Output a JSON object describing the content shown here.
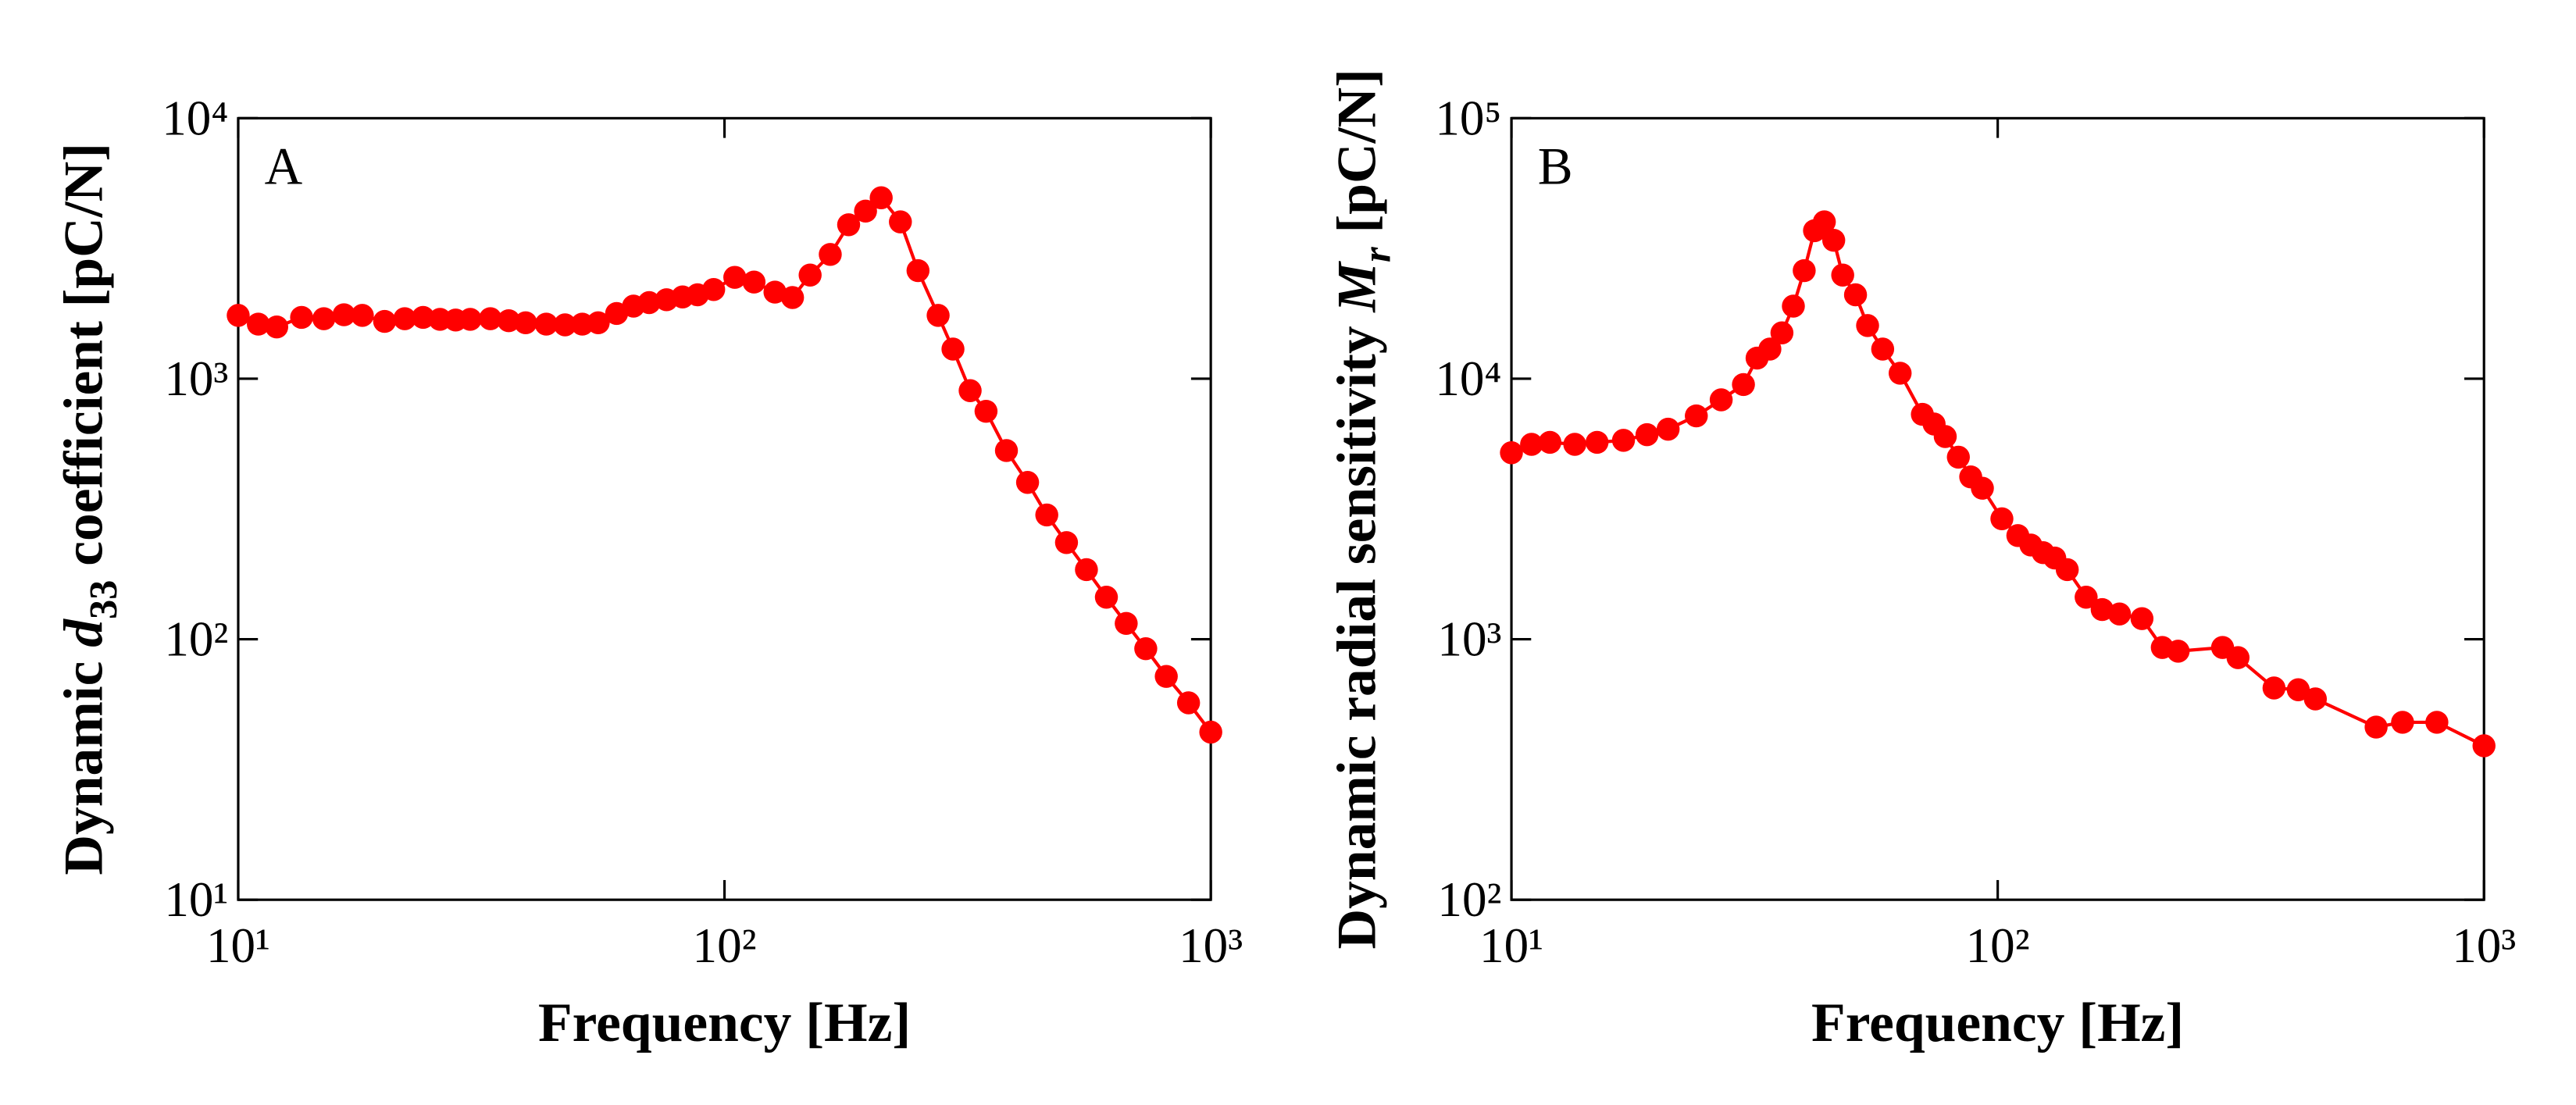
{
  "chart_data": [
    {
      "type": "line",
      "panel_label": "A",
      "xlabel": "Frequency [Hz]",
      "ylabel": {
        "prefix": "Dynamic ",
        "symbol": "d",
        "subscript": "33",
        "suffix": " coefficient [pC/N]"
      },
      "xscale": "log",
      "yscale": "log",
      "color": "#ff0000",
      "xlim": [
        10,
        1000
      ],
      "ylim": [
        10,
        10000
      ],
      "xticks": [
        {
          "value": 10,
          "label": "10¹"
        },
        {
          "value": 100,
          "label": "10²"
        },
        {
          "value": 1000,
          "label": "10³"
        }
      ],
      "yticks": [
        {
          "value": 10,
          "label": "10¹"
        },
        {
          "value": 100,
          "label": "10²"
        },
        {
          "value": 1000,
          "label": "10³"
        },
        {
          "value": 10000,
          "label": "10⁴"
        }
      ],
      "x": [
        10,
        11,
        12,
        13.5,
        15,
        16.5,
        18,
        20,
        22,
        24,
        26,
        28,
        30,
        33,
        36,
        39,
        43,
        47,
        51,
        55,
        60,
        65,
        70,
        76,
        82,
        88,
        95,
        105,
        115,
        127,
        138,
        150,
        165,
        180,
        195,
        210,
        230,
        250,
        275,
        295,
        320,
        345,
        380,
        420,
        460,
        505,
        555,
        610,
        670,
        735,
        810,
        900,
        1000
      ],
      "values": [
        1750,
        1620,
        1580,
        1720,
        1700,
        1760,
        1750,
        1660,
        1700,
        1720,
        1690,
        1680,
        1690,
        1700,
        1670,
        1640,
        1620,
        1610,
        1620,
        1640,
        1780,
        1900,
        1960,
        2010,
        2060,
        2100,
        2200,
        2450,
        2350,
        2150,
        2050,
        2500,
        3000,
        3900,
        4400,
        4950,
        4000,
        2600,
        1750,
        1300,
        900,
        750,
        530,
        400,
        300,
        235,
        185,
        145,
        115,
        92,
        72,
        57,
        44
      ]
    },
    {
      "type": "line",
      "panel_label": "B",
      "xlabel": "Frequency [Hz]",
      "ylabel": {
        "prefix": "Dynamic radial sensitivity ",
        "symbol": "M",
        "subscript": "r",
        "suffix": " [pC/N]"
      },
      "xscale": "log",
      "yscale": "log",
      "color": "#ff0000",
      "xlim": [
        10,
        1000
      ],
      "ylim": [
        100,
        100000
      ],
      "xticks": [
        {
          "value": 10,
          "label": "10¹"
        },
        {
          "value": 100,
          "label": "10²"
        },
        {
          "value": 1000,
          "label": "10³"
        }
      ],
      "yticks": [
        {
          "value": 100,
          "label": "10²"
        },
        {
          "value": 1000,
          "label": "10³"
        },
        {
          "value": 10000,
          "label": "10⁴"
        },
        {
          "value": 100000,
          "label": "10⁵"
        }
      ],
      "x": [
        10,
        11,
        12,
        13.5,
        15,
        17,
        19,
        21,
        24,
        27,
        30,
        32,
        34,
        36,
        38,
        40,
        42,
        44,
        46,
        48,
        51,
        54,
        58,
        63,
        70,
        74,
        78,
        83,
        88,
        93,
        102,
        110,
        117,
        124,
        131,
        139,
        152,
        164,
        178,
        198,
        218,
        235,
        290,
        312,
        370,
        415,
        450,
        600,
        680,
        800,
        1000
      ],
      "values": [
        5200,
        5600,
        5700,
        5600,
        5700,
        5800,
        6100,
        6400,
        7200,
        8300,
        9500,
        12000,
        13000,
        15000,
        19000,
        26000,
        37000,
        40000,
        34000,
        25000,
        21000,
        16000,
        13000,
        10500,
        7300,
        6700,
        6000,
        5000,
        4200,
        3800,
        2900,
        2500,
        2300,
        2150,
        2050,
        1850,
        1450,
        1300,
        1250,
        1200,
        930,
        900,
        930,
        850,
        650,
        640,
        590,
        460,
        480,
        480,
        390
      ]
    }
  ]
}
